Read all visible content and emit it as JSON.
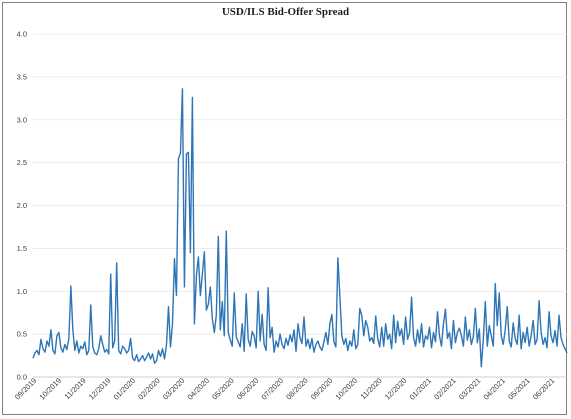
{
  "chart_data": {
    "type": "line",
    "title": "USD/ILS Bid-Offer Spread",
    "xlabel": "",
    "ylabel": "",
    "ylim": [
      0,
      4.0
    ],
    "yticks": [
      "0.0",
      "0.5",
      "1.0",
      "1.5",
      "2.0",
      "2.5",
      "3.0",
      "3.5",
      "4.0"
    ],
    "xticks": [
      "09/2019",
      "10/2019",
      "11/2019",
      "12/2019",
      "01/2020",
      "02/2020",
      "03/2020",
      "04/2020",
      "05/2020",
      "06/2020",
      "07/2020",
      "08/2020",
      "09/2020",
      "10/2020",
      "11/2020",
      "12/2020",
      "01/2021",
      "02/2021",
      "03/2021",
      "04/2021",
      "05/2021",
      "06/2021"
    ],
    "grid": true,
    "line_color": "#2e75b6",
    "series": [
      {
        "values": [
          0.22,
          0.28,
          0.31,
          0.26,
          0.44,
          0.33,
          0.29,
          0.42,
          0.36,
          0.55,
          0.31,
          0.27,
          0.48,
          0.52,
          0.34,
          0.29,
          0.38,
          0.32,
          0.45,
          1.06,
          0.55,
          0.31,
          0.42,
          0.28,
          0.36,
          0.33,
          0.41,
          0.26,
          0.31,
          0.84,
          0.35,
          0.28,
          0.26,
          0.33,
          0.48,
          0.38,
          0.29,
          0.32,
          0.27,
          1.2,
          0.34,
          0.42,
          1.33,
          0.31,
          0.27,
          0.36,
          0.33,
          0.28,
          0.31,
          0.45,
          0.22,
          0.19,
          0.26,
          0.18,
          0.21,
          0.25,
          0.19,
          0.23,
          0.28,
          0.21,
          0.27,
          0.16,
          0.19,
          0.31,
          0.24,
          0.33,
          0.21,
          0.38,
          0.82,
          0.35,
          0.62,
          1.38,
          0.95,
          2.55,
          2.61,
          3.36,
          1.05,
          2.6,
          2.62,
          1.45,
          3.26,
          0.62,
          1.18,
          1.4,
          0.95,
          1.2,
          1.46,
          0.78,
          0.85,
          1.05,
          0.68,
          0.52,
          0.72,
          1.64,
          0.55,
          0.88,
          0.48,
          1.7,
          0.52,
          0.43,
          0.36,
          0.98,
          0.47,
          0.41,
          0.35,
          0.62,
          0.3,
          0.97,
          0.44,
          0.36,
          0.53,
          0.48,
          0.34,
          1.0,
          0.42,
          0.73,
          0.38,
          0.31,
          1.04,
          0.46,
          0.58,
          0.29,
          0.42,
          0.35,
          0.5,
          0.38,
          0.33,
          0.45,
          0.37,
          0.49,
          0.41,
          0.55,
          0.3,
          0.62,
          0.46,
          0.39,
          0.7,
          0.36,
          0.44,
          0.33,
          0.45,
          0.29,
          0.38,
          0.42,
          0.35,
          0.31,
          0.41,
          0.52,
          0.38,
          0.62,
          0.73,
          0.41,
          0.35,
          1.39,
          0.95,
          0.48,
          0.38,
          0.45,
          0.31,
          0.42,
          0.36,
          0.55,
          0.33,
          0.38,
          0.8,
          0.72,
          0.48,
          0.66,
          0.58,
          0.42,
          0.46,
          0.39,
          0.71,
          0.45,
          0.35,
          0.58,
          0.36,
          0.62,
          0.44,
          0.5,
          0.33,
          0.72,
          0.4,
          0.65,
          0.48,
          0.56,
          0.38,
          0.7,
          0.44,
          0.52,
          0.93,
          0.46,
          0.36,
          0.55,
          0.4,
          0.62,
          0.35,
          0.48,
          0.44,
          0.58,
          0.34,
          0.52,
          0.41,
          0.76,
          0.48,
          0.36,
          0.62,
          0.79,
          0.45,
          0.52,
          0.33,
          0.66,
          0.4,
          0.52,
          0.57,
          0.48,
          0.36,
          0.7,
          0.43,
          0.55,
          0.38,
          0.47,
          0.8,
          0.4,
          0.56,
          0.12,
          0.44,
          0.88,
          0.36,
          0.6,
          0.48,
          0.36,
          1.09,
          0.6,
          0.98,
          0.48,
          0.38,
          0.55,
          0.82,
          0.42,
          0.35,
          0.63,
          0.45,
          0.38,
          0.72,
          0.33,
          0.52,
          0.4,
          0.58,
          0.36,
          0.48,
          0.66,
          0.38,
          0.44,
          0.89,
          0.52,
          0.38,
          0.46,
          0.34,
          0.76,
          0.48,
          0.4,
          0.54,
          0.36,
          0.72,
          0.46,
          0.38,
          0.33,
          0.28
        ]
      }
    ]
  }
}
